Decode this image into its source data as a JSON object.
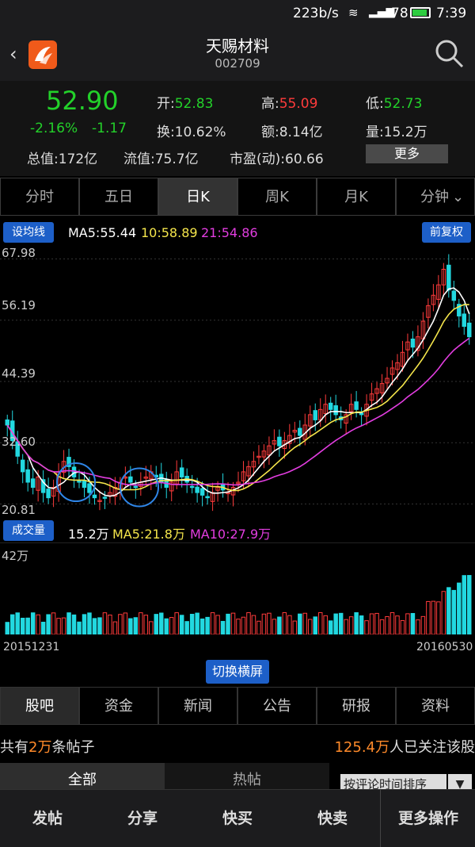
{
  "status": {
    "speed": "223b/s",
    "battery": "78",
    "time": "7:39"
  },
  "header": {
    "name": "天赐材料",
    "code": "002709"
  },
  "quote": {
    "price": "52.90",
    "change_pct": "-2.16%",
    "change": "-1.17",
    "open_label": "开:",
    "open": "52.83",
    "high_label": "高:",
    "high": "55.09",
    "low_label": "低:",
    "low": "52.73",
    "turnover_label": "换:",
    "turnover": "10.62%",
    "amount_label": "额:",
    "amount": "8.14亿",
    "volume_label": "量:",
    "volume": "15.2万",
    "mcap_label": "总值:",
    "mcap": "172亿",
    "float_label": "流值:",
    "float": "75.7亿",
    "pe_label": "市盈(动):",
    "pe": "60.66",
    "more": "更多"
  },
  "tabs": [
    "分时",
    "五日",
    "日K",
    "周K",
    "月K",
    "分钟"
  ],
  "chart_bar": {
    "set_ma": "设均线",
    "ma5": "MA5:55.44",
    "ma10": "10:58.89",
    "ma21": "21:54.86",
    "adjust": "前复权"
  },
  "axis": {
    "y1": "67.98",
    "y2": "56.19",
    "y3": "44.39",
    "y4": "32.60",
    "y5": "20.81",
    "vol_max": "42万",
    "date_start": "20151231",
    "date_end": "20160530"
  },
  "volume_bar": {
    "label": "成交量",
    "vol": "15.2万",
    "ma5": "MA5:21.8万",
    "ma10": "MA10:27.9万"
  },
  "switch_landscape": "切换横屏",
  "subtabs": [
    "股吧",
    "资金",
    "新闻",
    "公告",
    "研报",
    "资料"
  ],
  "forum": {
    "prefix": "共有",
    "count": "2万",
    "suffix": "条帖子",
    "follow_count": "125.4万",
    "follow_suffix": "人已关注该股",
    "filter_all": "全部",
    "filter_hot": "热帖",
    "sort": "按评论时间排序"
  },
  "bottom": [
    "发帖",
    "分享",
    "快买",
    "快卖",
    "更多操作"
  ],
  "colors": {
    "up": "#ff3b3b",
    "down": "#23d12a",
    "ma5": "#ffffff",
    "ma10": "#f5e64b",
    "ma21": "#e23de0",
    "accent": "#1d5fc8"
  },
  "chart_data": {
    "type": "candlestick",
    "x_range": [
      "20151231",
      "20160530"
    ],
    "ylim": [
      20.81,
      67.98
    ],
    "yticks": [
      67.98,
      56.19,
      44.39,
      32.6,
      20.81
    ],
    "volume_max": "42万",
    "series": [
      {
        "name": "MA5",
        "last": 55.44
      },
      {
        "name": "MA10",
        "last": 58.89
      },
      {
        "name": "MA21",
        "last": 54.86
      }
    ],
    "closes": [
      36,
      33,
      30,
      27,
      25,
      24,
      26,
      23,
      22,
      24,
      27,
      29,
      28,
      26,
      25,
      24,
      23,
      22,
      21.5,
      22,
      23,
      24,
      25,
      26,
      25,
      24,
      25,
      26,
      27,
      26,
      25,
      24,
      25,
      27,
      26,
      25,
      24,
      23,
      22.5,
      22,
      23,
      24,
      23.5,
      23,
      24,
      25,
      27,
      28,
      29,
      30,
      31,
      32,
      33,
      32,
      33,
      34,
      35,
      34,
      36,
      38,
      37,
      39,
      40,
      39,
      38,
      37,
      38,
      40,
      39,
      38,
      40,
      42,
      43,
      44,
      45,
      47,
      48,
      50,
      52,
      51,
      53,
      56,
      59,
      61,
      63,
      66,
      62,
      60,
      57,
      55,
      53
    ]
  }
}
